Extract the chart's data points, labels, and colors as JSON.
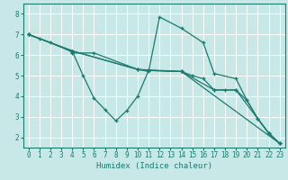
{
  "xlabel": "Humidex (Indice chaleur)",
  "xlim": [
    -0.5,
    23.5
  ],
  "ylim": [
    1.5,
    8.5
  ],
  "yticks": [
    2,
    3,
    4,
    5,
    6,
    7,
    8
  ],
  "xticks": [
    0,
    1,
    2,
    3,
    4,
    5,
    6,
    7,
    8,
    9,
    10,
    11,
    12,
    13,
    14,
    15,
    16,
    17,
    18,
    19,
    20,
    21,
    22,
    23
  ],
  "bg_color": "#c8e8e8",
  "line_color": "#1a7a6e",
  "grid_color": "#ffffff",
  "lines": [
    {
      "x": [
        0,
        1,
        2,
        4,
        4,
        6,
        10,
        11,
        12,
        14,
        16,
        17,
        19,
        20,
        21,
        22,
        23
      ],
      "y": [
        7.0,
        6.8,
        6.6,
        6.15,
        6.1,
        6.1,
        5.3,
        5.2,
        7.85,
        7.3,
        6.6,
        5.1,
        4.85,
        3.8,
        2.9,
        2.2,
        1.7
      ]
    },
    {
      "x": [
        0,
        4,
        5,
        6,
        7,
        8,
        9,
        10,
        11,
        14,
        15,
        16,
        17,
        18,
        19,
        20,
        21,
        22,
        23
      ],
      "y": [
        7.0,
        6.2,
        5.0,
        3.9,
        3.35,
        2.8,
        3.3,
        4.0,
        5.25,
        5.2,
        5.0,
        4.85,
        4.3,
        4.3,
        4.3,
        3.8,
        2.9,
        2.2,
        1.7
      ]
    },
    {
      "x": [
        0,
        4,
        10,
        11,
        14,
        17,
        19,
        22,
        23
      ],
      "y": [
        7.0,
        6.2,
        5.3,
        5.25,
        5.2,
        4.3,
        4.3,
        2.2,
        1.7
      ]
    },
    {
      "x": [
        0,
        4,
        10,
        14,
        23
      ],
      "y": [
        7.0,
        6.2,
        5.3,
        5.2,
        1.7
      ]
    }
  ]
}
